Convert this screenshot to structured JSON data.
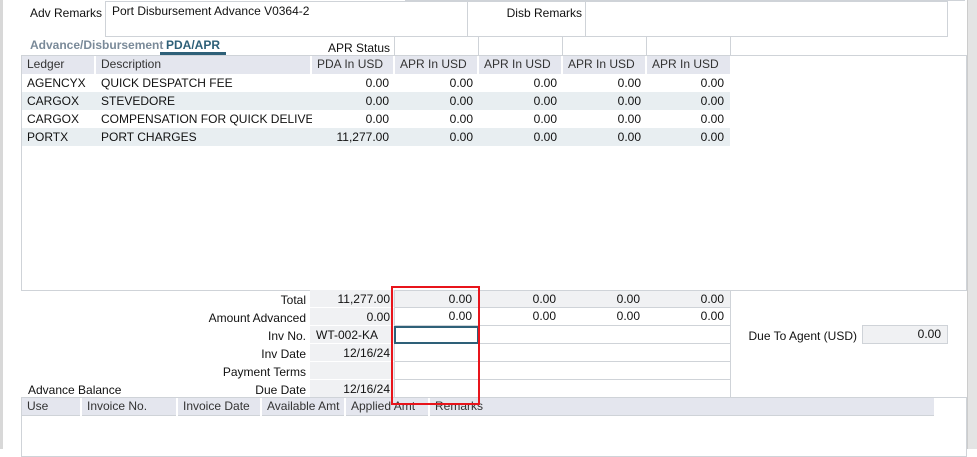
{
  "remarks": {
    "adv_label": "Adv Remarks",
    "adv_value": "Port Disbursement Advance V0364-2",
    "disb_label": "Disb Remarks",
    "disb_value": ""
  },
  "tabs": [
    {
      "label": "Advance/Disbursement",
      "active": false
    },
    {
      "label": "PDA/APR",
      "active": true
    }
  ],
  "apr_status_label": "APR Status",
  "grid": {
    "columns": [
      "Ledger",
      "Description",
      "PDA In USD",
      "APR In USD",
      "APR In USD",
      "APR In USD",
      "APR In USD"
    ],
    "rows": [
      [
        "AGENCYX",
        "QUICK DESPATCH FEE",
        "0.00",
        "0.00",
        "0.00",
        "0.00",
        "0.00"
      ],
      [
        "CARGOX",
        "STEVEDORE",
        "0.00",
        "0.00",
        "0.00",
        "0.00",
        "0.00"
      ],
      [
        "CARGOX",
        "COMPENSATION FOR QUICK DELIVERY",
        "0.00",
        "0.00",
        "0.00",
        "0.00",
        "0.00"
      ],
      [
        "PORTX",
        "PORT CHARGES",
        "11,277.00",
        "0.00",
        "0.00",
        "0.00",
        "0.00"
      ]
    ]
  },
  "summary": {
    "rows": [
      {
        "label": "Total",
        "pda": "11,277.00",
        "apr": [
          "0.00",
          "0.00",
          "0.00",
          "0.00"
        ]
      },
      {
        "label": "Amount Advanced",
        "pda": "0.00",
        "apr": [
          "0.00",
          "0.00",
          "0.00",
          "0.00"
        ]
      },
      {
        "label": "Inv No.",
        "pda": "WT-002-KA",
        "apr": [
          "",
          "",
          "",
          ""
        ]
      },
      {
        "label": "Inv Date",
        "pda": "12/16/24",
        "apr": [
          "",
          "",
          "",
          ""
        ]
      },
      {
        "label": "Payment Terms",
        "pda": "",
        "apr": [
          "",
          "",
          "",
          ""
        ]
      },
      {
        "label": "Due Date",
        "pda": "12/16/24",
        "apr": [
          "",
          "",
          "",
          ""
        ]
      }
    ],
    "due_to_agent_label": "Due To Agent (USD)",
    "due_to_agent_value": "0.00"
  },
  "advance_balance": {
    "label": "Advance Balance",
    "columns": [
      "Use",
      "Invoice No.",
      "Invoice Date",
      "Available Amt",
      "Applied Amt",
      "Remarks"
    ]
  },
  "colors": {
    "header_bg": "#e4e6ee",
    "alt_row": "#e8eef1",
    "readonly_bg": "#f0f1f3",
    "tab_accent": "#2e6078",
    "highlight": "#e8141b"
  }
}
